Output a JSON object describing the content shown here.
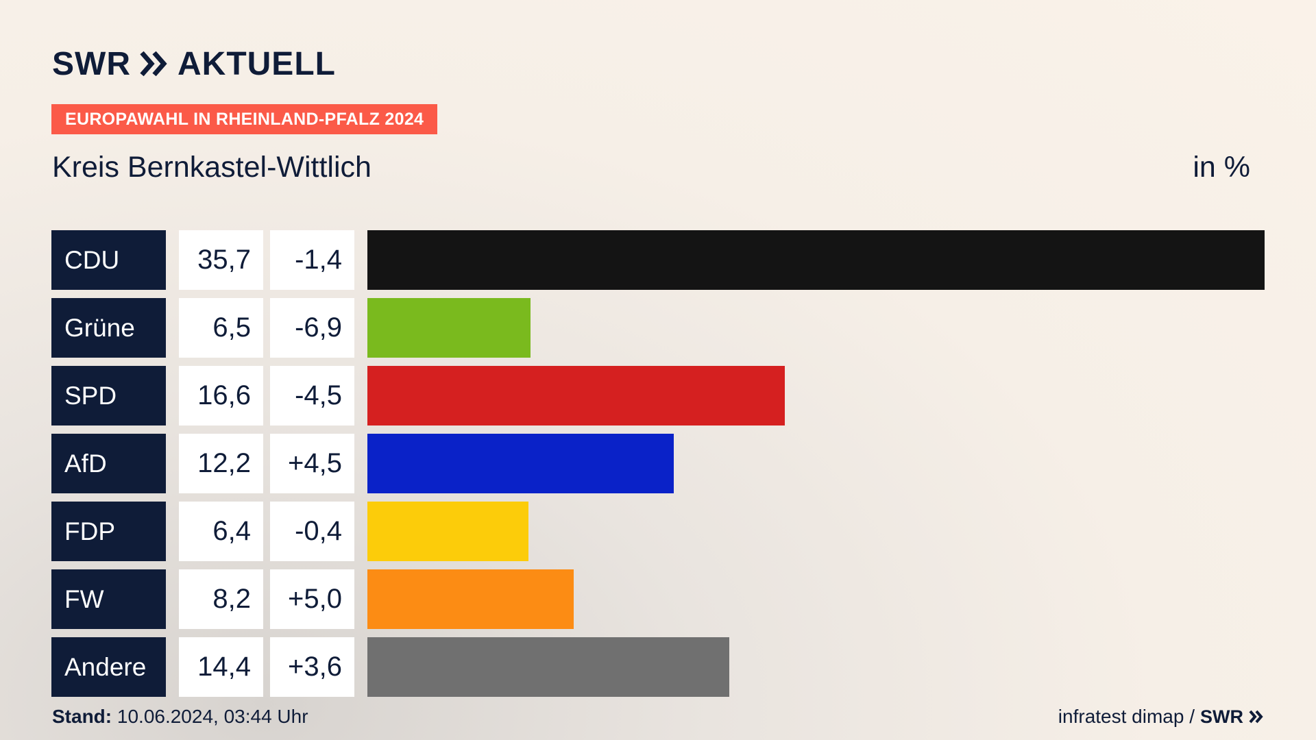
{
  "header": {
    "logo_swr": "SWR",
    "logo_aktuell": "AKTUELL",
    "kicker": "EUROPAWAHL IN RHEINLAND-PFALZ 2024",
    "subtitle": "Kreis Bernkastel-Wittlich",
    "unit": "in %"
  },
  "colors": {
    "navy": "#0f1c38",
    "accent": "#fb5a48"
  },
  "chart_data": {
    "type": "bar",
    "orientation": "horizontal",
    "title": "Kreis Bernkastel-Wittlich",
    "unit": "in %",
    "xlim": [
      0,
      35.7
    ],
    "categories": [
      "CDU",
      "Grüne",
      "SPD",
      "AfD",
      "FDP",
      "FW",
      "Andere"
    ],
    "values": [
      35.7,
      6.5,
      16.6,
      12.2,
      6.4,
      8.2,
      14.4
    ],
    "value_labels": [
      "35,7",
      "6,5",
      "16,6",
      "12,2",
      "6,4",
      "8,2",
      "14,4"
    ],
    "changes": [
      -1.4,
      -6.9,
      -4.5,
      4.5,
      -0.4,
      5.0,
      3.6
    ],
    "change_labels": [
      "-1,4",
      "-6,9",
      "-4,5",
      "+4,5",
      "-0,4",
      "+5,0",
      "+3,6"
    ],
    "bar_colors": [
      "#141414",
      "#7aba1e",
      "#d52020",
      "#0a22c8",
      "#fccc0a",
      "#fc8c14",
      "#707070"
    ]
  },
  "footer": {
    "stand_label": "Stand:",
    "stand_value": "10.06.2024, 03:44 Uhr",
    "source": "infratest dimap /",
    "source_logo": "SWR"
  }
}
